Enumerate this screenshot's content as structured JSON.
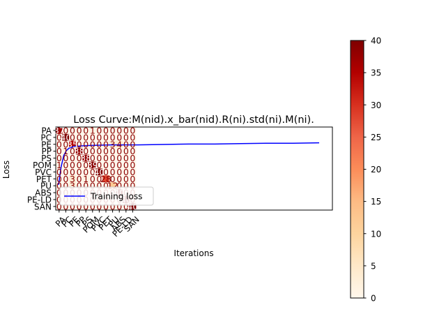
{
  "chart_data": [
    {
      "type": "heatmap",
      "title": "Loss Curve:M(nid).x_bar(nid).R(ni).std(ni).M(ni).",
      "xlabel": "Iterations",
      "ylabel": "Loss",
      "row_labels": [
        "PA",
        "PC",
        "PE",
        "PP",
        "PS",
        "POM",
        "PVC",
        "PET",
        "PU",
        "ABS",
        "PE-LD",
        "SAN"
      ],
      "col_labels": [
        "PA",
        "PC",
        "PE",
        "PP",
        "PS",
        "POM",
        "PVC",
        "PET",
        "PU",
        "ABS",
        "PE-LD",
        "SAN"
      ],
      "values": [
        [
          37,
          0,
          0,
          0,
          0,
          1,
          0,
          0,
          0,
          0,
          0,
          0
        ],
        [
          0,
          40,
          0,
          0,
          0,
          0,
          0,
          0,
          0,
          0,
          0,
          0
        ],
        [
          0,
          0,
          35,
          0,
          0,
          0,
          0,
          0,
          3,
          4,
          0,
          0
        ],
        [
          0,
          1,
          0,
          38,
          0,
          0,
          0,
          0,
          0,
          0,
          0,
          0
        ],
        [
          0,
          0,
          0,
          0,
          38,
          0,
          0,
          0,
          0,
          0,
          0,
          0
        ],
        [
          1,
          0,
          0,
          0,
          0,
          39,
          0,
          0,
          0,
          0,
          0,
          0
        ],
        [
          0,
          0,
          0,
          0,
          0,
          0,
          40,
          0,
          0,
          0,
          0,
          0
        ],
        [
          0,
          0,
          3,
          0,
          1,
          0,
          0,
          28,
          0,
          0,
          0,
          0
        ],
        [
          0,
          0,
          3,
          0,
          0,
          0,
          0,
          0,
          12,
          0,
          0,
          0
        ],
        [
          0,
          0,
          0,
          0,
          0,
          0,
          0,
          0,
          0,
          40,
          0,
          0
        ],
        [
          0,
          0,
          0,
          0,
          0,
          0,
          0,
          0,
          0,
          0,
          40,
          0
        ],
        [
          0,
          0,
          0,
          0,
          0,
          0,
          0,
          0,
          0,
          0,
          0,
          40
        ]
      ],
      "colormap": "OrRd",
      "vmin": 0,
      "vmax": 40,
      "colorbar_ticks": [
        "0",
        "5",
        "10",
        "15",
        "20",
        "25",
        "30",
        "35",
        "40"
      ],
      "text_color": "#8b0000"
    },
    {
      "type": "line",
      "series": [
        {
          "name": "Training loss",
          "color": "#0000ff",
          "values": [
            [
              0.0,
              0.3
            ],
            [
              0.01,
              0.52
            ],
            [
              0.02,
              0.66
            ],
            [
              0.03,
              0.72
            ],
            [
              0.04,
              0.75
            ],
            [
              0.06,
              0.77
            ],
            [
              0.1,
              0.78
            ],
            [
              0.2,
              0.79
            ],
            [
              0.3,
              0.79
            ],
            [
              0.4,
              0.795
            ],
            [
              0.5,
              0.8
            ],
            [
              0.6,
              0.8
            ],
            [
              0.7,
              0.805
            ],
            [
              0.8,
              0.81
            ],
            [
              0.9,
              0.81
            ],
            [
              1.0,
              0.815
            ]
          ]
        }
      ],
      "legend_position": "lower-left"
    }
  ]
}
